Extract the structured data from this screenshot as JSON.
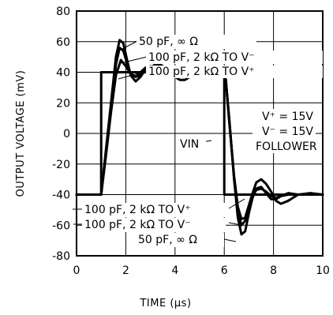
{
  "chart_data": {
    "type": "line",
    "xlabel": "TIME (µs)",
    "ylabel": "OUTPUT VOLTAGE (mV)",
    "xlim": [
      0,
      10
    ],
    "ylim": [
      -80,
      80
    ],
    "xticks": [
      "0",
      "2",
      "4",
      "6",
      "8",
      "10"
    ],
    "yticks": [
      "80",
      "60",
      "40",
      "20",
      "0",
      "-20",
      "-40",
      "-60",
      "-80"
    ],
    "grid": true,
    "series": [
      {
        "name": "VIN",
        "x": [
          0,
          1.0,
          1.0,
          6.0,
          6.0,
          10
        ],
        "y": [
          -40,
          -40,
          40,
          40,
          -40,
          -40
        ]
      },
      {
        "name": "50 pF, ∞ Ω",
        "x": [
          0,
          1.0,
          1.2,
          1.4,
          1.6,
          1.75,
          1.9,
          2.05,
          2.2,
          2.4,
          2.6,
          2.8,
          3.0,
          3.2,
          3.4,
          3.6,
          3.8,
          4.0,
          4.3,
          4.6,
          5.0,
          5.5,
          5.9,
          6.05,
          6.2,
          6.4,
          6.55,
          6.7,
          6.85,
          7.0,
          7.15,
          7.3,
          7.5,
          7.7,
          7.9,
          8.1,
          8.3,
          8.6,
          9.0,
          9.5,
          10
        ],
        "y": [
          -40,
          -40,
          -10,
          20,
          50,
          61,
          59,
          48,
          38,
          34,
          37,
          42,
          44,
          42,
          40,
          39,
          40,
          41,
          40,
          40,
          40,
          40,
          40,
          37,
          10,
          -30,
          -55,
          -66,
          -64,
          -52,
          -42,
          -36,
          -35,
          -39,
          -43,
          -43,
          -41,
          -39,
          -40,
          -40,
          -40
        ]
      },
      {
        "name": "100 pF, 2 kΩ TO V⁻",
        "x": [
          0,
          1.0,
          1.2,
          1.4,
          1.6,
          1.75,
          1.9,
          2.05,
          2.2,
          2.4,
          2.6,
          2.8,
          3.0,
          3.2,
          3.4,
          3.6,
          3.8,
          4.0,
          4.3,
          4.6,
          5.0,
          5.5,
          5.9,
          6.05,
          6.2,
          6.4,
          6.55,
          6.7,
          6.85,
          7.0,
          7.15,
          7.3,
          7.5,
          7.7,
          7.9,
          8.1,
          8.3,
          8.6,
          9.0,
          9.5,
          10
        ],
        "y": [
          -40,
          -40,
          -12,
          18,
          45,
          56,
          54,
          46,
          39,
          37,
          40,
          43,
          43,
          41,
          40,
          40,
          40,
          40,
          40,
          40,
          40,
          40,
          40,
          37,
          10,
          -30,
          -52,
          -60,
          -57,
          -48,
          -41,
          -37,
          -36,
          -38,
          -41,
          -42,
          -41,
          -40,
          -40,
          -40,
          -40
        ]
      },
      {
        "name": "100 pF, 2 kΩ TO V⁺",
        "x": [
          0,
          1.0,
          1.2,
          1.4,
          1.6,
          1.8,
          2.0,
          2.2,
          2.4,
          2.6,
          2.8,
          3.0,
          3.2,
          3.4,
          3.6,
          3.8,
          4.0,
          4.2,
          4.4,
          4.6,
          4.8,
          5.0,
          5.3,
          5.6,
          5.9,
          6.05,
          6.2,
          6.4,
          6.55,
          6.7,
          6.85,
          7.0,
          7.15,
          7.3,
          7.5,
          7.7,
          7.9,
          8.1,
          8.3,
          8.6,
          9.0,
          9.5,
          10
        ],
        "y": [
          -40,
          -40,
          -14,
          14,
          38,
          48,
          44,
          39,
          37,
          38,
          41,
          43,
          45,
          45,
          43,
          40,
          37,
          35,
          35,
          37,
          39,
          40,
          41,
          40,
          40,
          37,
          8,
          -28,
          -48,
          -56,
          -55,
          -47,
          -39,
          -32,
          -30,
          -33,
          -38,
          -44,
          -46,
          -44,
          -40,
          -39,
          -40
        ]
      }
    ],
    "annotations": {
      "top_1": "50 pF, ∞ Ω",
      "top_2": "100 pF, 2 kΩ TO V⁻",
      "top_3": "100 pF, 2 kΩ TO V⁺",
      "bottom_1": "100 pF, 2 kΩ TO V⁺",
      "bottom_2": "100 pF, 2 kΩ TO V⁻",
      "bottom_3": "50 pF, ∞ Ω",
      "vplus": "V⁺ = 15V",
      "vminus": "V⁻ = 15V",
      "follower": "FOLLOWER",
      "vin": "VIN"
    }
  }
}
